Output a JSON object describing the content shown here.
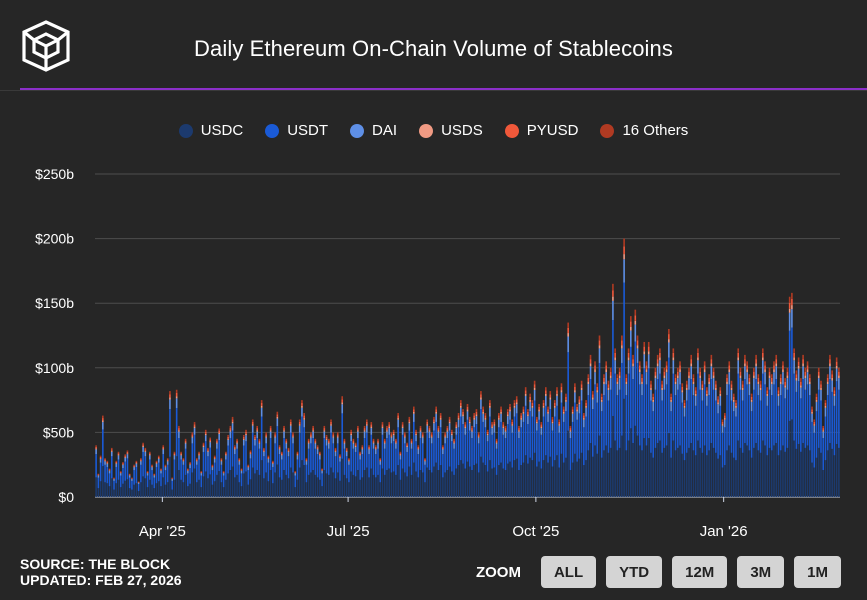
{
  "header": {
    "title": "Daily Ethereum On-Chain Volume of Stablecoins"
  },
  "legend": [
    {
      "name": "USDC",
      "color": "#1c3a6e"
    },
    {
      "name": "USDT",
      "color": "#1a5ad6"
    },
    {
      "name": "DAI",
      "color": "#5e8fe6"
    },
    {
      "name": "USDS",
      "color": "#f09a83"
    },
    {
      "name": "PYUSD",
      "color": "#f0583a"
    },
    {
      "name": "16 Others",
      "color": "#b03a22"
    }
  ],
  "footer": {
    "source": "SOURCE: THE BLOCK",
    "updated": "UPDATED: FEB 27, 2026"
  },
  "zoom": {
    "label": "ZOOM",
    "buttons": [
      "ALL",
      "YTD",
      "12M",
      "3M",
      "1M"
    ]
  },
  "chart_data": {
    "type": "bar",
    "stacked": true,
    "title": "Daily Ethereum On-Chain Volume of Stablecoins",
    "x_start": "2025-02-27",
    "x_end": "2026-02-27",
    "x_tick_labels": [
      {
        "label": "Apr '25",
        "date": "2025-04-01"
      },
      {
        "label": "Jul '25",
        "date": "2025-07-01"
      },
      {
        "label": "Oct '25",
        "date": "2025-10-01"
      },
      {
        "label": "Jan '26",
        "date": "2026-01-01"
      }
    ],
    "y_ticks": [
      {
        "value": 0,
        "label": "$0"
      },
      {
        "value": 50,
        "label": "$50b"
      },
      {
        "value": 100,
        "label": "$100b"
      },
      {
        "value": 150,
        "label": "$150b"
      },
      {
        "value": 200,
        "label": "$200b"
      },
      {
        "value": 250,
        "label": "$250b"
      }
    ],
    "ylim": [
      0,
      250
    ],
    "y_unit": "billions USD",
    "grid": true,
    "legend_position": "top",
    "series_order": [
      "USDC",
      "USDT",
      "DAI",
      "USDS",
      "PYUSD",
      "16 Others"
    ],
    "series_share": [
      0.38,
      0.45,
      0.09,
      0.02,
      0.03,
      0.03
    ],
    "daily_totals": [
      40,
      18,
      32,
      63,
      30,
      28,
      22,
      38,
      15,
      28,
      35,
      20,
      27,
      33,
      36,
      18,
      15,
      25,
      28,
      12,
      30,
      42,
      38,
      20,
      35,
      25,
      18,
      28,
      32,
      22,
      40,
      25,
      30,
      82,
      15,
      35,
      83,
      55,
      35,
      30,
      45,
      22,
      27,
      50,
      58,
      30,
      35,
      20,
      42,
      52,
      38,
      46,
      25,
      32,
      45,
      53,
      30,
      20,
      35,
      48,
      55,
      62,
      40,
      45,
      30,
      22,
      48,
      52,
      25,
      36,
      60,
      48,
      55,
      45,
      75,
      38,
      50,
      32,
      55,
      28,
      50,
      66,
      40,
      35,
      55,
      45,
      38,
      60,
      50,
      20,
      35,
      60,
      75,
      65,
      30,
      45,
      50,
      55,
      45,
      40,
      35,
      22,
      55,
      48,
      45,
      60,
      50,
      38,
      50,
      33,
      78,
      45,
      38,
      30,
      52,
      45,
      42,
      55,
      35,
      40,
      55,
      60,
      40,
      58,
      45,
      40,
      45,
      30,
      58,
      45,
      55,
      58,
      50,
      52,
      45,
      65,
      35,
      58,
      50,
      42,
      62,
      45,
      70,
      52,
      40,
      55,
      50,
      30,
      60,
      55,
      50,
      62,
      70,
      55,
      65,
      40,
      50,
      55,
      62,
      52,
      45,
      58,
      65,
      75,
      68,
      58,
      72,
      62,
      55,
      65,
      68,
      50,
      82,
      70,
      65,
      52,
      75,
      58,
      60,
      45,
      65,
      70,
      58,
      55,
      68,
      72,
      60,
      75,
      78,
      55,
      65,
      70,
      85,
      68,
      80,
      75,
      90,
      62,
      72,
      58,
      75,
      85,
      70,
      82,
      62,
      75,
      85,
      60,
      88,
      70,
      80,
      135,
      55,
      70,
      88,
      72,
      78,
      90,
      65,
      75,
      95,
      110,
      82,
      105,
      88,
      125,
      80,
      95,
      105,
      90,
      100,
      165,
      115,
      95,
      100,
      125,
      200,
      95,
      115,
      140,
      110,
      145,
      125,
      105,
      95,
      120,
      105,
      120,
      90,
      80,
      100,
      110,
      115,
      90,
      100,
      105,
      130,
      80,
      115,
      95,
      100,
      105,
      88,
      75,
      90,
      100,
      110,
      95,
      85,
      115,
      100,
      90,
      105,
      85,
      95,
      110,
      100,
      90,
      78,
      85,
      60,
      65,
      95,
      105,
      90,
      80,
      75,
      115,
      100,
      90,
      110,
      105,
      95,
      80,
      100,
      110,
      95,
      90,
      115,
      105,
      85,
      100,
      95,
      105,
      110,
      85,
      95,
      105,
      92,
      100,
      155,
      158,
      115,
      98,
      108,
      92,
      110,
      100,
      105,
      95,
      70,
      60,
      80,
      100,
      90,
      55,
      75,
      95,
      110,
      98,
      85,
      108,
      100
    ]
  }
}
